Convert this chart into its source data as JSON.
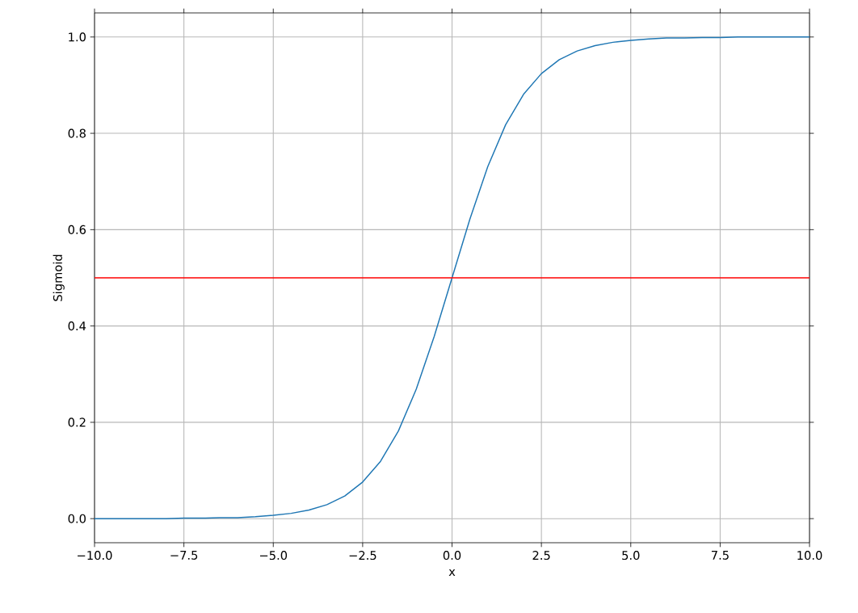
{
  "chart_data": {
    "type": "line",
    "xlabel": "x",
    "ylabel": "Sigmoid",
    "x": [
      -10,
      -9.5,
      -9,
      -8.5,
      -8,
      -7.5,
      -7,
      -6.5,
      -6,
      -5.5,
      -5,
      -4.5,
      -4,
      -3.5,
      -3,
      -2.5,
      -2,
      -1.5,
      -1,
      -0.5,
      0,
      0.5,
      1,
      1.5,
      2,
      2.5,
      3,
      3.5,
      4,
      4.5,
      5,
      5.5,
      6,
      6.5,
      7,
      7.5,
      8,
      8.5,
      9,
      9.5,
      10
    ],
    "series": [
      {
        "color": "#1f77b4",
        "values": [
          0.0,
          0.0,
          0.0,
          0.0,
          0.0,
          0.001,
          0.001,
          0.002,
          0.002,
          0.004,
          0.007,
          0.011,
          0.018,
          0.029,
          0.047,
          0.076,
          0.119,
          0.182,
          0.269,
          0.378,
          0.5,
          0.622,
          0.731,
          0.818,
          0.881,
          0.924,
          0.953,
          0.971,
          0.982,
          0.989,
          0.993,
          0.996,
          0.998,
          0.998,
          0.999,
          0.999,
          1.0,
          1.0,
          1.0,
          1.0,
          1.0
        ]
      }
    ],
    "xlim": [
      -10,
      10
    ],
    "ylim": [
      -0.05,
      1.05
    ],
    "xticks": [
      {
        "value": -10,
        "label": "−10.0"
      },
      {
        "value": -7.5,
        "label": "−7.5"
      },
      {
        "value": -5,
        "label": "−5.0"
      },
      {
        "value": -2.5,
        "label": "−2.5"
      },
      {
        "value": 0,
        "label": "0.0"
      },
      {
        "value": 2.5,
        "label": "2.5"
      },
      {
        "value": 5,
        "label": "5.0"
      },
      {
        "value": 7.5,
        "label": "7.5"
      },
      {
        "value": 10,
        "label": "10.0"
      }
    ],
    "yticks": [
      {
        "value": 0,
        "label": "0.0"
      },
      {
        "value": 0.2,
        "label": "0.2"
      },
      {
        "value": 0.4,
        "label": "0.4"
      },
      {
        "value": 0.6,
        "label": "0.6"
      },
      {
        "value": 0.8,
        "label": "0.8"
      },
      {
        "value": 1,
        "label": "1.0"
      }
    ],
    "ref_lines": [
      {
        "axis": "y",
        "value": 0.5,
        "color": "#ff0000"
      }
    ],
    "grid": true,
    "marker": "none",
    "line_style": "solid"
  }
}
